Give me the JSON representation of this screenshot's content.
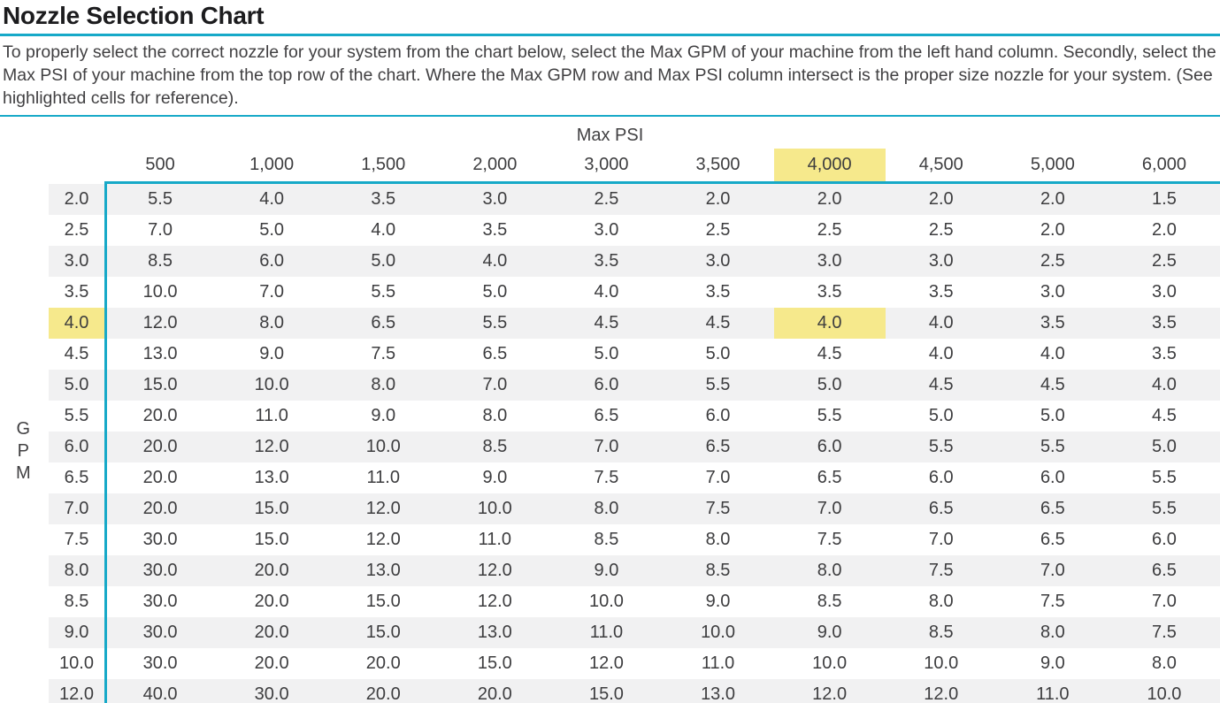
{
  "page": {
    "title": "Nozzle Selection Chart",
    "description": "To properly select the correct nozzle for your system from the chart below, select the Max GPM of your machine from the left hand column. Secondly, select the Max PSI of your machine from the top row of the chart. Where the Max GPM row and Max PSI column intersect is the proper size nozzle for your system. (See highlighted cells for reference)."
  },
  "colors": {
    "accent_teal": "#17A9C8",
    "highlight_yellow": "#F6E98C",
    "row_stripe_gray": "#F1F1F2"
  },
  "chart_data": {
    "type": "table",
    "title": "Nozzle Selection Chart",
    "col_axis_label": "Max PSI",
    "row_axis_label": "GPM",
    "columns": [
      "500",
      "1,000",
      "1,500",
      "2,000",
      "3,000",
      "3,500",
      "4,000",
      "4,500",
      "5,000",
      "6,000"
    ],
    "rows": [
      "2.0",
      "2.5",
      "3.0",
      "3.5",
      "4.0",
      "4.5",
      "5.0",
      "5.5",
      "6.0",
      "6.5",
      "7.0",
      "7.5",
      "8.0",
      "8.5",
      "9.0",
      "10.0",
      "12.0"
    ],
    "values": [
      [
        "5.5",
        "4.0",
        "3.5",
        "3.0",
        "2.5",
        "2.0",
        "2.0",
        "2.0",
        "2.0",
        "1.5"
      ],
      [
        "7.0",
        "5.0",
        "4.0",
        "3.5",
        "3.0",
        "2.5",
        "2.5",
        "2.5",
        "2.0",
        "2.0"
      ],
      [
        "8.5",
        "6.0",
        "5.0",
        "4.0",
        "3.5",
        "3.0",
        "3.0",
        "3.0",
        "2.5",
        "2.5"
      ],
      [
        "10.0",
        "7.0",
        "5.5",
        "5.0",
        "4.0",
        "3.5",
        "3.5",
        "3.5",
        "3.0",
        "3.0"
      ],
      [
        "12.0",
        "8.0",
        "6.5",
        "5.5",
        "4.5",
        "4.5",
        "4.0",
        "4.0",
        "3.5",
        "3.5"
      ],
      [
        "13.0",
        "9.0",
        "7.5",
        "6.5",
        "5.0",
        "5.0",
        "4.5",
        "4.0",
        "4.0",
        "3.5"
      ],
      [
        "15.0",
        "10.0",
        "8.0",
        "7.0",
        "6.0",
        "5.5",
        "5.0",
        "4.5",
        "4.5",
        "4.0"
      ],
      [
        "20.0",
        "11.0",
        "9.0",
        "8.0",
        "6.5",
        "6.0",
        "5.5",
        "5.0",
        "5.0",
        "4.5"
      ],
      [
        "20.0",
        "12.0",
        "10.0",
        "8.5",
        "7.0",
        "6.5",
        "6.0",
        "5.5",
        "5.5",
        "5.0"
      ],
      [
        "20.0",
        "13.0",
        "11.0",
        "9.0",
        "7.5",
        "7.0",
        "6.5",
        "6.0",
        "6.0",
        "5.5"
      ],
      [
        "20.0",
        "15.0",
        "12.0",
        "10.0",
        "8.0",
        "7.5",
        "7.0",
        "6.5",
        "6.5",
        "5.5"
      ],
      [
        "30.0",
        "15.0",
        "12.0",
        "11.0",
        "8.5",
        "8.0",
        "7.5",
        "7.0",
        "6.5",
        "6.0"
      ],
      [
        "30.0",
        "20.0",
        "13.0",
        "12.0",
        "9.0",
        "8.5",
        "8.0",
        "7.5",
        "7.0",
        "6.5"
      ],
      [
        "30.0",
        "20.0",
        "15.0",
        "12.0",
        "10.0",
        "9.0",
        "8.5",
        "8.0",
        "7.5",
        "7.0"
      ],
      [
        "30.0",
        "20.0",
        "15.0",
        "13.0",
        "11.0",
        "10.0",
        "9.0",
        "8.5",
        "8.0",
        "7.5"
      ],
      [
        "30.0",
        "20.0",
        "20.0",
        "15.0",
        "12.0",
        "11.0",
        "10.0",
        "10.0",
        "9.0",
        "8.0"
      ],
      [
        "40.0",
        "30.0",
        "20.0",
        "20.0",
        "15.0",
        "13.0",
        "12.0",
        "12.0",
        "11.0",
        "10.0"
      ]
    ],
    "highlight": {
      "row_label": "4.0",
      "column_label": "4,000",
      "intersect_value": "4.0",
      "row_index": 4,
      "col_index": 6,
      "color": "#F6E98C"
    },
    "legend_position": "none",
    "grid": "row-stripes"
  }
}
